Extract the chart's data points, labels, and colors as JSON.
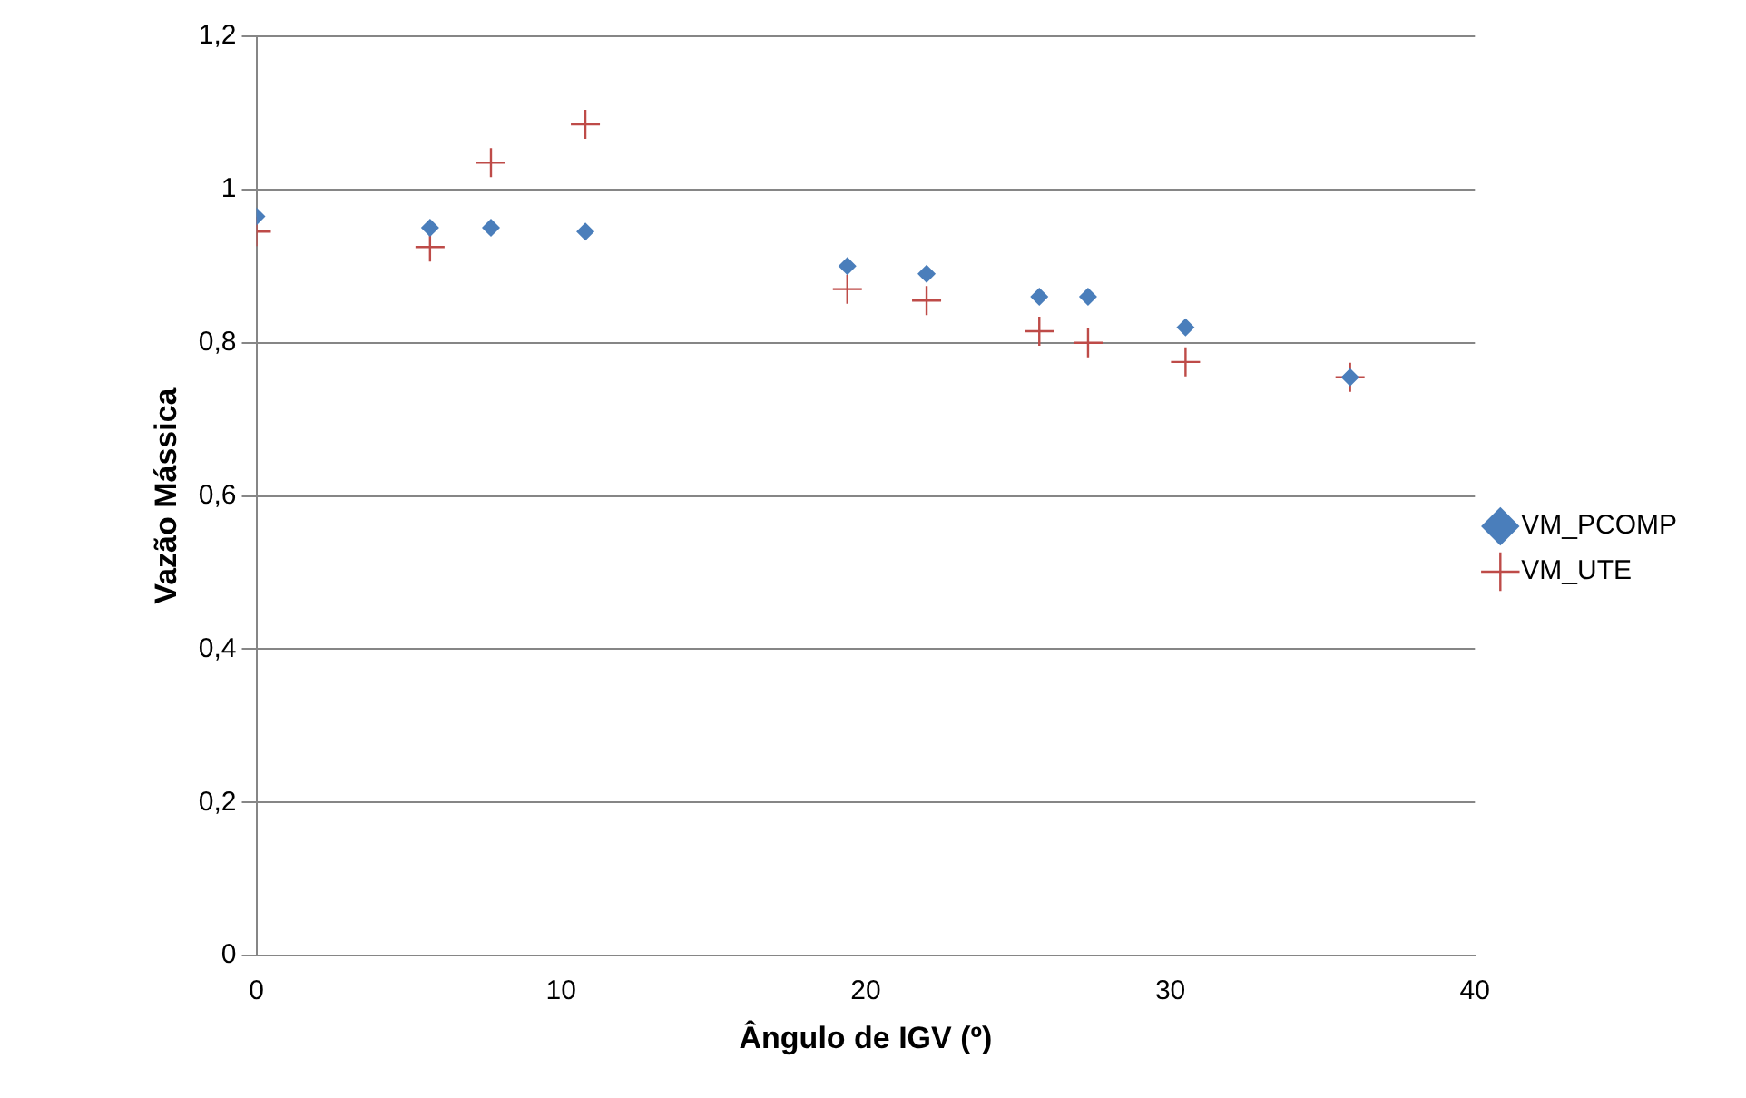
{
  "chart_data": {
    "type": "scatter",
    "xlabel": "Ângulo de IGV (º)",
    "ylabel": "Vazão Mássica",
    "xlim": [
      0,
      40
    ],
    "xticks": [
      0,
      10,
      20,
      30,
      40
    ],
    "ylim": [
      0,
      1.2
    ],
    "yticks": [
      {
        "value": 0,
        "label": "0"
      },
      {
        "value": 0.2,
        "label": "0,2"
      },
      {
        "value": 0.4,
        "label": "0,4"
      },
      {
        "value": 0.6,
        "label": "0,6"
      },
      {
        "value": 0.8,
        "label": "0,8"
      },
      {
        "value": 1,
        "label": "1"
      },
      {
        "value": 1.2,
        "label": "1,2"
      }
    ],
    "grid": "y",
    "legend": "right",
    "series": [
      {
        "name": "VM_PCOMP",
        "color": "#4a7ebb",
        "marker": "diamond",
        "x": [
          0,
          5.7,
          7.7,
          10.8,
          19.4,
          22,
          25.7,
          27.3,
          30.5,
          35.9
        ],
        "values": [
          0.965,
          0.95,
          0.95,
          0.945,
          0.9,
          0.89,
          0.86,
          0.86,
          0.82,
          0.755
        ]
      },
      {
        "name": "VM_UTE",
        "color": "#be4b48",
        "marker": "cross",
        "x": [
          0,
          5.7,
          7.7,
          10.8,
          19.4,
          22,
          25.7,
          27.3,
          30.5,
          35.9
        ],
        "values": [
          0.945,
          0.925,
          1.035,
          1.085,
          0.87,
          0.855,
          0.815,
          0.8,
          0.775,
          0.755
        ]
      }
    ]
  }
}
